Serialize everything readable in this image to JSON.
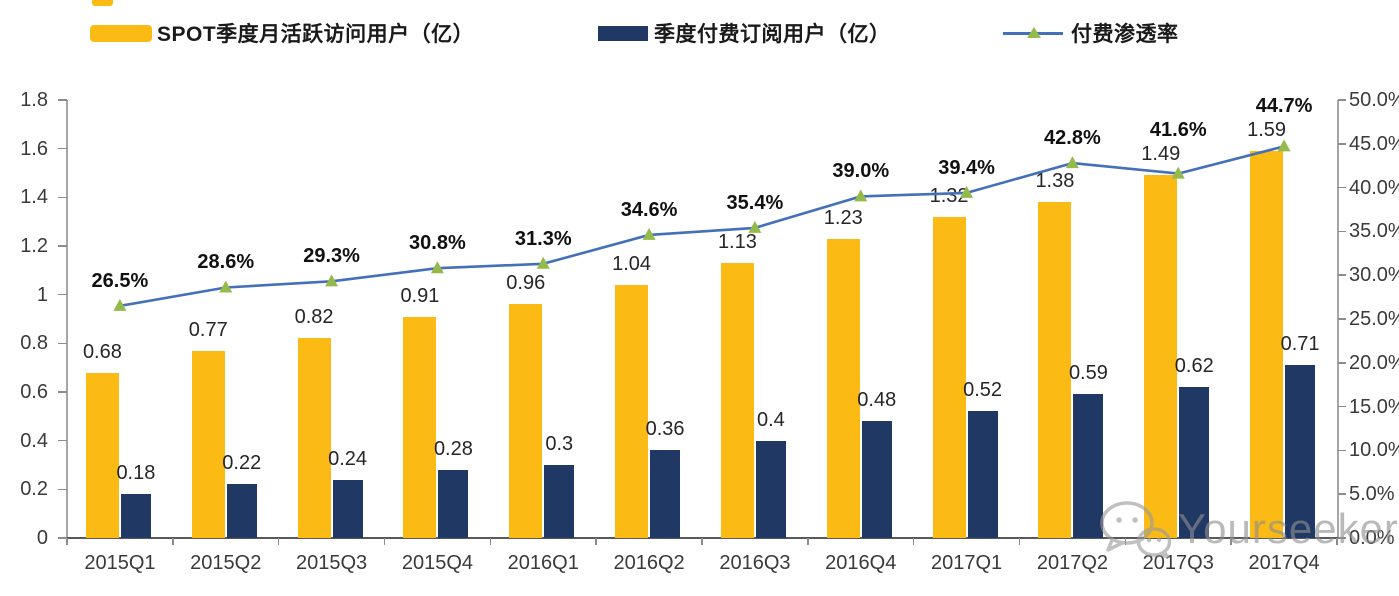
{
  "legend": {
    "items": [
      {
        "label": "SPOT季度月活跃访问用户（亿）",
        "swatch": "yellow-bar"
      },
      {
        "label": "季度付费订阅用户（亿）",
        "swatch": "navy-bar"
      },
      {
        "label": "付费渗透率",
        "swatch": "line-with-triangle-marker"
      }
    ]
  },
  "watermark": {
    "text": "Yourseeker",
    "icon": "wechat-icon"
  },
  "colors": {
    "mau_bar": "#fbbb14",
    "subscriber_bar": "#1f3864",
    "penetration_line": "#4470b9",
    "marker_green": "#94bb4a",
    "axis_gray": "#a6a6a6",
    "bottom_axis": "#595959",
    "text_dark": "#262626",
    "watermark_gray": "#8f8f8f"
  },
  "chart_data": {
    "type": "bar",
    "subtype": "grouped-bars-with-line-overlay",
    "title": "",
    "xlabel": "",
    "ylabel_left": "",
    "ylabel_right": "",
    "grid": false,
    "legend_position": "top",
    "categories": [
      "2015Q1",
      "2015Q2",
      "2015Q3",
      "2015Q4",
      "2016Q1",
      "2016Q2",
      "2016Q3",
      "2016Q4",
      "2017Q1",
      "2017Q2",
      "2017Q3",
      "2017Q4"
    ],
    "series": [
      {
        "name": "SPOT季度月活跃访问用户（亿）",
        "type": "bar",
        "axis": "left",
        "color": "#fbbb14",
        "values": [
          0.68,
          0.77,
          0.82,
          0.91,
          0.96,
          1.04,
          1.13,
          1.23,
          1.32,
          1.38,
          1.49,
          1.59
        ],
        "labels": [
          "0.68",
          "0.77",
          "0.82",
          "0.91",
          "0.96",
          "1.04",
          "1.13",
          "1.23",
          "1.32",
          "1.38",
          "1.49",
          "1.59"
        ]
      },
      {
        "name": "季度付费订阅用户（亿）",
        "type": "bar",
        "axis": "left",
        "color": "#1f3864",
        "values": [
          0.18,
          0.22,
          0.24,
          0.28,
          0.3,
          0.36,
          0.4,
          0.48,
          0.52,
          0.59,
          0.62,
          0.71
        ],
        "labels": [
          "0.18",
          "0.22",
          "0.24",
          "0.28",
          "0.3",
          "0.36",
          "0.4",
          "0.48",
          "0.52",
          "0.59",
          "0.62",
          "0.71"
        ]
      },
      {
        "name": "付费渗透率",
        "type": "line",
        "axis": "right",
        "color": "#4470b9",
        "marker": "triangle",
        "marker_color": "#94bb4a",
        "values": [
          26.5,
          28.6,
          29.3,
          30.8,
          31.3,
          34.6,
          35.4,
          39.0,
          39.4,
          42.8,
          41.6,
          44.7
        ],
        "labels": [
          "26.5%",
          "28.6%",
          "29.3%",
          "30.8%",
          "31.3%",
          "34.6%",
          "35.4%",
          "39.0%",
          "39.4%",
          "42.8%",
          "41.6%",
          "44.7%"
        ]
      }
    ],
    "left_axis": {
      "min": 0,
      "max": 1.8,
      "step": 0.2,
      "labels": [
        "1.8",
        "1.6",
        "1.4",
        "1.2",
        "1",
        "0.8",
        "0.6",
        "0.4",
        "0.2",
        "0"
      ]
    },
    "right_axis": {
      "min": 0,
      "max": 50,
      "step": 5,
      "labels": [
        "50.0%",
        "45.0%",
        "40.0%",
        "35.0%",
        "30.0%",
        "25.0%",
        "20.0%",
        "15.0%",
        "10.0%",
        "5.0%",
        "0.0%"
      ]
    }
  }
}
